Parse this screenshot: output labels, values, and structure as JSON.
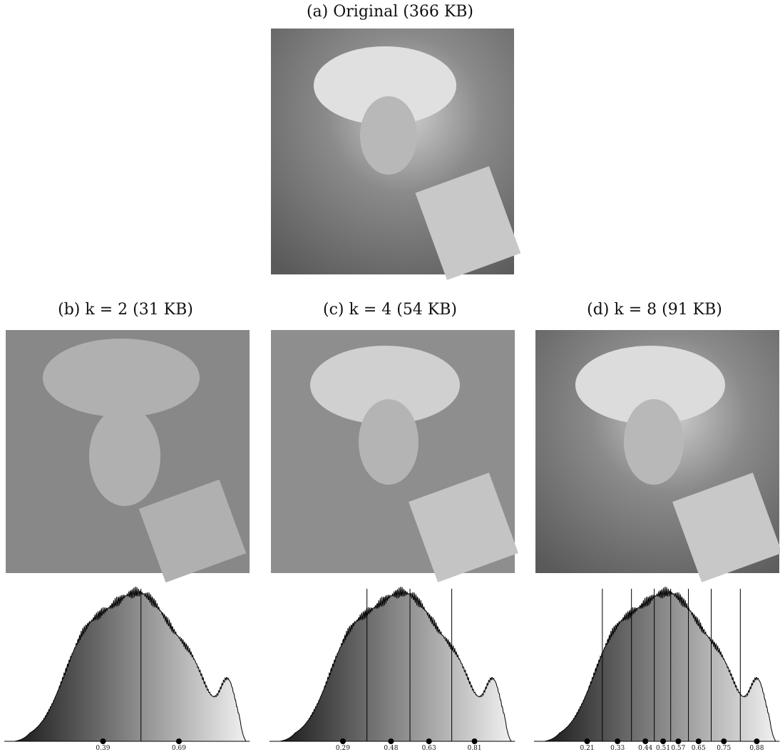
{
  "figure": {
    "captions": [
      "(a) Original (366 KB)",
      "(b) k = 2 (31 KB)",
      "(c) k = 4 (54 KB)",
      "(d) k = 8 (91 KB)"
    ],
    "histograms": [
      {
        "centers": [
          0.39,
          0.69
        ]
      },
      {
        "centers": [
          0.29,
          0.48,
          0.63,
          0.81
        ]
      },
      {
        "centers": [
          0.21,
          0.33,
          0.44,
          0.51,
          0.57,
          0.65,
          0.75,
          0.88
        ]
      }
    ]
  }
}
